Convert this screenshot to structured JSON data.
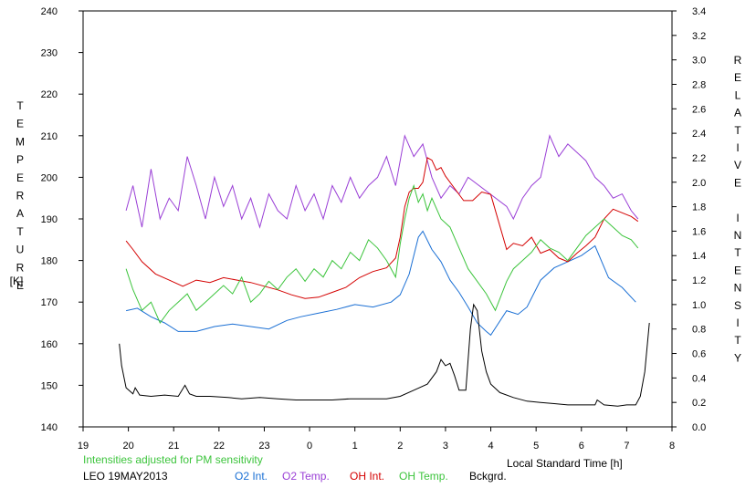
{
  "chart_data": {
    "type": "line",
    "title": "",
    "xlabel": "Local Standard Time [h]",
    "ylabel_left": "TEMPERATURE",
    "ylabel_left_unit": "[K]",
    "ylabel_right": "RELATIVE INTENSITY",
    "xlim": [
      19,
      8
    ],
    "x_ticks": [
      "19",
      "20",
      "21",
      "22",
      "23",
      "0",
      "1",
      "2",
      "3",
      "4",
      "5",
      "6",
      "7",
      "8"
    ],
    "ylim_left": [
      140,
      240
    ],
    "y_ticks_left": [
      "140",
      "150",
      "160",
      "170",
      "180",
      "190",
      "200",
      "210",
      "220",
      "230",
      "240"
    ],
    "ylim_right": [
      0.0,
      3.4
    ],
    "y_ticks_right": [
      "0.0",
      "0.2",
      "0.4",
      "0.6",
      "0.8",
      "1.0",
      "1.2",
      "1.4",
      "1.6",
      "1.8",
      "2.0",
      "2.2",
      "2.4",
      "2.6",
      "2.8",
      "3.0",
      "3.2",
      "3.4"
    ],
    "note": "Intensities adjusted for PM sensitivity",
    "station_date": "LEO 19MAY2013",
    "series": [
      {
        "name": "O2 Int.",
        "axis": "right",
        "color": "#1a6fd4",
        "x": [
          19.95,
          20.2,
          20.5,
          20.8,
          21.1,
          21.5,
          21.9,
          22.3,
          22.7,
          23.1,
          23.5,
          23.8,
          0.2,
          0.6,
          1.0,
          1.4,
          1.8,
          2.0,
          2.2,
          2.4,
          2.5,
          2.7,
          2.9,
          3.1,
          3.3,
          3.5,
          3.7,
          3.9,
          4.0,
          4.35,
          4.6,
          4.8,
          5.1,
          5.4,
          5.7,
          6.0,
          6.3,
          6.6,
          6.9,
          7.2
        ],
        "y": [
          0.95,
          0.97,
          0.9,
          0.85,
          0.78,
          0.78,
          0.82,
          0.84,
          0.82,
          0.8,
          0.87,
          0.9,
          0.93,
          0.96,
          1.0,
          0.98,
          1.02,
          1.08,
          1.25,
          1.55,
          1.6,
          1.45,
          1.35,
          1.2,
          1.1,
          0.98,
          0.85,
          0.78,
          0.75,
          0.95,
          0.92,
          0.98,
          1.2,
          1.3,
          1.35,
          1.4,
          1.48,
          1.22,
          1.14,
          1.02
        ]
      },
      {
        "name": "O2 Temp.",
        "axis": "left",
        "color": "#9a3fd6",
        "x": [
          19.95,
          20.1,
          20.3,
          20.5,
          20.7,
          20.9,
          21.1,
          21.3,
          21.5,
          21.7,
          21.9,
          22.1,
          22.3,
          22.5,
          22.7,
          22.9,
          23.1,
          23.3,
          23.5,
          23.7,
          23.9,
          0.1,
          0.3,
          0.5,
          0.7,
          0.9,
          1.1,
          1.3,
          1.5,
          1.7,
          1.9,
          2.1,
          2.3,
          2.5,
          2.7,
          2.9,
          3.1,
          3.3,
          3.5,
          4.35,
          4.5,
          4.7,
          4.9,
          5.1,
          5.3,
          5.5,
          5.7,
          5.9,
          6.1,
          6.3,
          6.5,
          6.7,
          6.9,
          7.1,
          7.25
        ],
        "y": [
          192,
          198,
          188,
          202,
          190,
          195,
          192,
          205,
          198,
          190,
          200,
          193,
          198,
          190,
          195,
          188,
          196,
          192,
          190,
          198,
          192,
          196,
          190,
          198,
          194,
          200,
          195,
          198,
          200,
          205,
          198,
          210,
          205,
          208,
          200,
          195,
          198,
          196,
          200,
          193,
          190,
          195,
          198,
          200,
          210,
          205,
          208,
          206,
          204,
          200,
          198,
          195,
          196,
          192,
          190
        ]
      },
      {
        "name": "OH Int.",
        "axis": "right",
        "color": "#d40000",
        "x": [
          19.95,
          20.1,
          20.3,
          20.6,
          20.9,
          21.2,
          21.5,
          21.8,
          22.1,
          22.4,
          22.7,
          23.0,
          23.3,
          23.6,
          23.9,
          0.2,
          0.5,
          0.8,
          1.1,
          1.4,
          1.7,
          1.9,
          2.0,
          2.1,
          2.2,
          2.3,
          2.4,
          2.5,
          2.6,
          2.7,
          2.8,
          2.9,
          3.0,
          3.2,
          3.4,
          3.6,
          3.8,
          4.0,
          4.35,
          4.5,
          4.7,
          4.9,
          5.1,
          5.3,
          5.5,
          5.7,
          5.9,
          6.1,
          6.3,
          6.5,
          6.7,
          6.9,
          7.1,
          7.25
        ],
        "y": [
          1.52,
          1.45,
          1.35,
          1.25,
          1.2,
          1.15,
          1.2,
          1.18,
          1.22,
          1.2,
          1.18,
          1.15,
          1.12,
          1.08,
          1.05,
          1.06,
          1.1,
          1.14,
          1.22,
          1.27,
          1.3,
          1.38,
          1.55,
          1.8,
          1.92,
          1.95,
          1.95,
          2.0,
          2.2,
          2.18,
          2.1,
          2.12,
          2.05,
          1.95,
          1.85,
          1.85,
          1.92,
          1.9,
          1.45,
          1.5,
          1.48,
          1.55,
          1.42,
          1.45,
          1.38,
          1.35,
          1.42,
          1.48,
          1.55,
          1.7,
          1.78,
          1.75,
          1.72,
          1.68
        ]
      },
      {
        "name": "OH Temp.",
        "axis": "left",
        "color": "#3cc43c",
        "x": [
          19.95,
          20.1,
          20.3,
          20.5,
          20.7,
          20.9,
          21.1,
          21.3,
          21.5,
          21.7,
          21.9,
          22.1,
          22.3,
          22.5,
          22.7,
          22.9,
          23.1,
          23.3,
          23.5,
          23.7,
          23.9,
          0.1,
          0.3,
          0.5,
          0.7,
          0.9,
          1.1,
          1.3,
          1.5,
          1.7,
          1.9,
          2.0,
          2.1,
          2.2,
          2.3,
          2.4,
          2.5,
          2.6,
          2.7,
          2.9,
          3.1,
          3.3,
          3.5,
          3.7,
          3.9,
          4.1,
          4.35,
          4.5,
          4.7,
          4.9,
          5.1,
          5.3,
          5.5,
          5.7,
          5.9,
          6.1,
          6.3,
          6.5,
          6.7,
          6.9,
          7.1,
          7.25
        ],
        "y": [
          178,
          173,
          168,
          170,
          165,
          168,
          170,
          172,
          168,
          170,
          172,
          174,
          172,
          176,
          170,
          172,
          175,
          173,
          176,
          178,
          175,
          178,
          176,
          180,
          178,
          182,
          180,
          185,
          183,
          180,
          176,
          184,
          190,
          195,
          198,
          194,
          196,
          192,
          195,
          190,
          188,
          183,
          178,
          175,
          172,
          168,
          175,
          178,
          180,
          182,
          185,
          183,
          182,
          180,
          183,
          186,
          188,
          190,
          188,
          186,
          185,
          183
        ]
      },
      {
        "name": "Bckgrd.",
        "axis": "right",
        "color": "#000000",
        "x": [
          19.8,
          19.85,
          19.95,
          20.1,
          20.15,
          20.25,
          20.5,
          20.8,
          21.1,
          21.25,
          21.35,
          21.5,
          21.8,
          22.2,
          22.5,
          22.9,
          23.3,
          23.7,
          0.1,
          0.5,
          0.9,
          1.3,
          1.7,
          2.0,
          2.3,
          2.6,
          2.8,
          2.9,
          3.0,
          3.1,
          3.2,
          3.3,
          3.45,
          3.55,
          3.62,
          3.7,
          3.8,
          3.9,
          4.0,
          4.2,
          4.5,
          4.8,
          5.1,
          5.4,
          5.7,
          6.0,
          6.3,
          6.35,
          6.5,
          6.8,
          7.0,
          7.2,
          7.3,
          7.4,
          7.5
        ],
        "y": [
          0.68,
          0.5,
          0.32,
          0.27,
          0.32,
          0.26,
          0.25,
          0.26,
          0.25,
          0.34,
          0.27,
          0.25,
          0.25,
          0.24,
          0.23,
          0.24,
          0.23,
          0.22,
          0.22,
          0.22,
          0.23,
          0.23,
          0.23,
          0.25,
          0.3,
          0.35,
          0.45,
          0.55,
          0.5,
          0.52,
          0.42,
          0.3,
          0.3,
          0.8,
          1.0,
          0.95,
          0.62,
          0.45,
          0.35,
          0.28,
          0.24,
          0.21,
          0.2,
          0.19,
          0.18,
          0.18,
          0.18,
          0.22,
          0.18,
          0.17,
          0.18,
          0.18,
          0.25,
          0.45,
          0.85
        ]
      }
    ]
  }
}
